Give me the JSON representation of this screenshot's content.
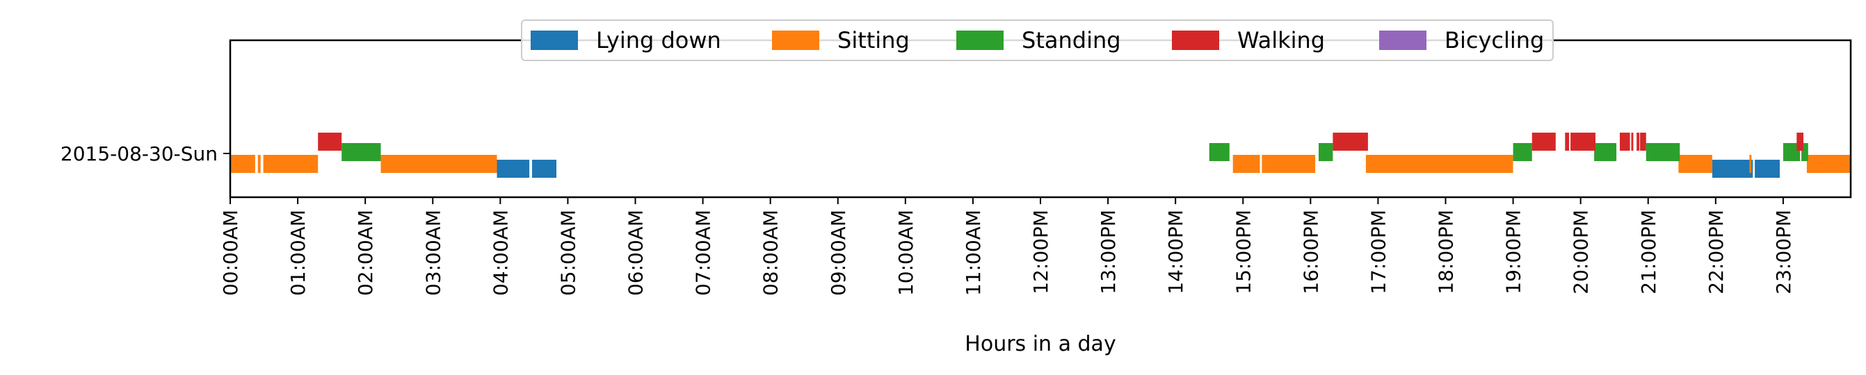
{
  "chart_data": {
    "type": "timeline",
    "xlabel": "Hours in a day",
    "ylabel": "",
    "xlim": [
      0,
      24
    ],
    "row_labels": [
      "2015-08-30-Sun"
    ],
    "x_tick_labels": [
      "00:00AM",
      "01:00AM",
      "02:00AM",
      "03:00AM",
      "04:00AM",
      "05:00AM",
      "06:00AM",
      "07:00AM",
      "08:00AM",
      "09:00AM",
      "10:00AM",
      "11:00AM",
      "12:00PM",
      "13:00PM",
      "14:00PM",
      "15:00PM",
      "16:00PM",
      "17:00PM",
      "18:00PM",
      "19:00PM",
      "20:00PM",
      "21:00PM",
      "22:00PM",
      "23:00PM"
    ],
    "legend_position": "top-center",
    "legend": [
      {
        "name": "Lying down",
        "color": "#1f77b4"
      },
      {
        "name": "Sitting",
        "color": "#ff7f0e"
      },
      {
        "name": "Standing",
        "color": "#2ca02c"
      },
      {
        "name": "Walking",
        "color": "#d62728"
      },
      {
        "name": "Bicycling",
        "color": "#9467bd"
      }
    ],
    "series": [
      {
        "name": "Lying down",
        "segments": [
          [
            3.95,
            4.43
          ],
          [
            4.47,
            4.83
          ],
          [
            21.95,
            22.55
          ],
          [
            22.58,
            22.95
          ]
        ]
      },
      {
        "name": "Sitting",
        "segments": [
          [
            0.0,
            0.37
          ],
          [
            0.41,
            0.45
          ],
          [
            0.49,
            1.3
          ],
          [
            2.23,
            3.95
          ],
          [
            14.85,
            15.25
          ],
          [
            15.28,
            16.07
          ],
          [
            16.82,
            19.0
          ],
          [
            21.45,
            21.95
          ],
          [
            22.5,
            22.53
          ],
          [
            23.35,
            24.0
          ]
        ]
      },
      {
        "name": "Standing",
        "segments": [
          [
            1.65,
            2.23
          ],
          [
            14.5,
            14.8
          ],
          [
            16.12,
            16.33
          ],
          [
            19.0,
            19.28
          ],
          [
            20.2,
            20.53
          ],
          [
            20.97,
            21.47
          ],
          [
            23.0,
            23.25
          ],
          [
            23.27,
            23.37
          ]
        ]
      },
      {
        "name": "Walking",
        "segments": [
          [
            1.3,
            1.65
          ],
          [
            16.33,
            16.85
          ],
          [
            19.28,
            19.63
          ],
          [
            19.77,
            19.83
          ],
          [
            19.85,
            20.22
          ],
          [
            20.58,
            20.73
          ],
          [
            20.75,
            20.78
          ],
          [
            20.83,
            20.87
          ],
          [
            20.88,
            20.97
          ],
          [
            23.2,
            23.3
          ]
        ]
      },
      {
        "name": "Bicycling",
        "segments": []
      }
    ]
  }
}
